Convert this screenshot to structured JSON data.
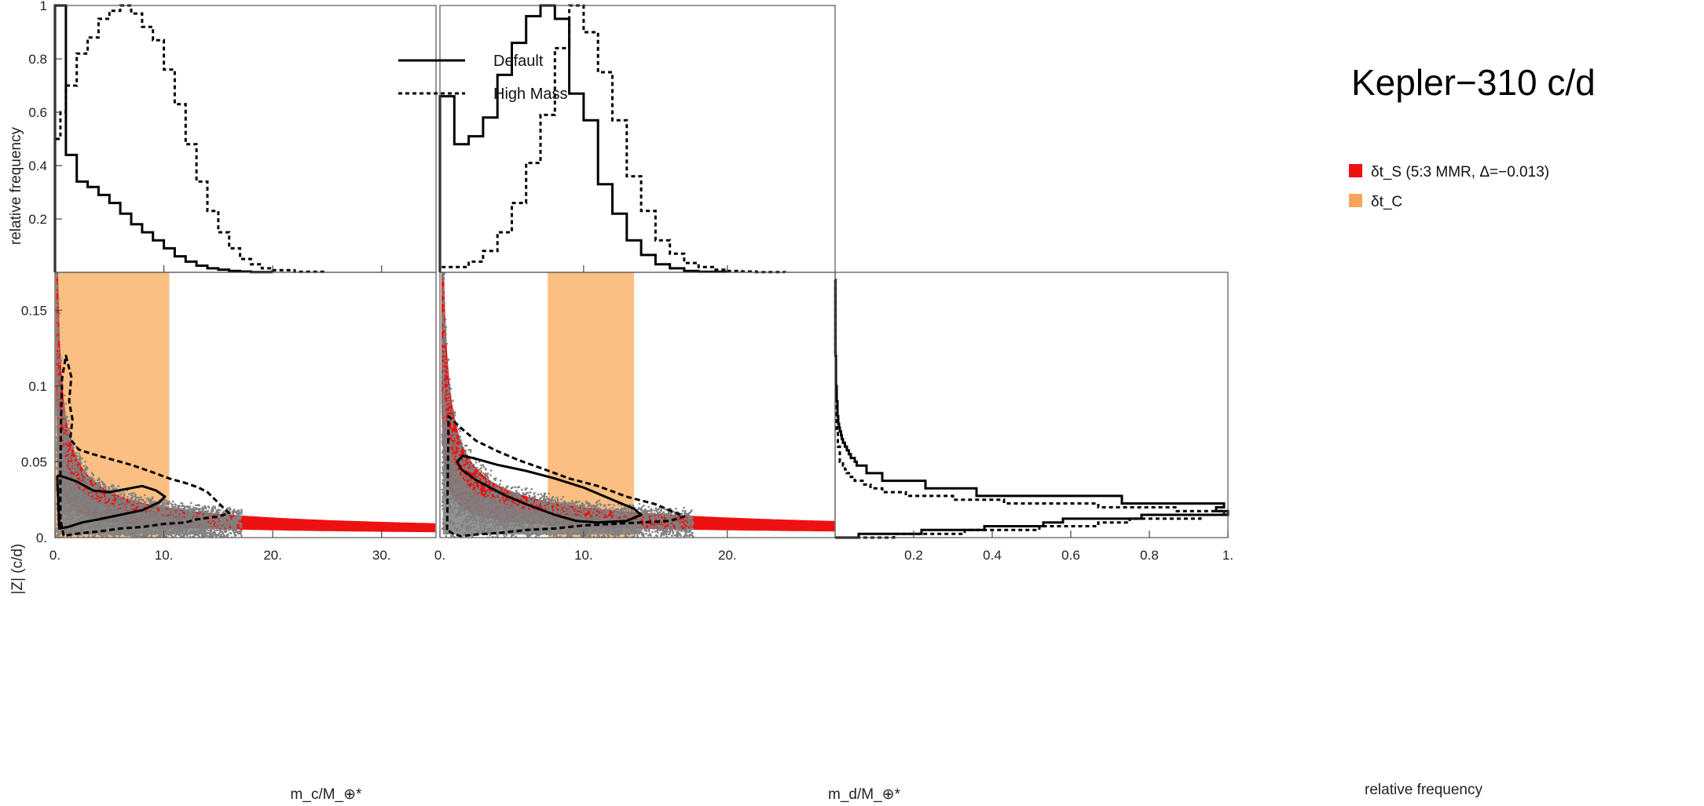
{
  "title": "Kepler−310 c/d",
  "legend_lines": {
    "solid": "Default",
    "dotted": "High Mass"
  },
  "legend_markers": [
    {
      "label": "δt_S (5:3 MMR, Δ=−0.013)",
      "color": "#ee1111"
    },
    {
      "label": "δt_C",
      "color": "#f7a35c"
    }
  ],
  "colors": {
    "resonant_region": "#ee1111",
    "chopping_region": "#fbbf82",
    "sample_points": "#808080"
  },
  "chart_data": [
    {
      "id": "hist_mc",
      "type": "line",
      "ylabel": "relative frequency",
      "xlim": [
        0,
        35
      ],
      "ylim": [
        0,
        1
      ],
      "yticks": [
        "0.2",
        "0.4",
        "0.6",
        "0.8",
        "1"
      ],
      "series": [
        {
          "name": "Default",
          "bin_edges": [
            0,
            1,
            2,
            3,
            4,
            5,
            6,
            7,
            8,
            9,
            10,
            11,
            12,
            13,
            14,
            15,
            16,
            17,
            18,
            20
          ],
          "values": [
            1.0,
            0.44,
            0.34,
            0.32,
            0.29,
            0.26,
            0.22,
            0.18,
            0.15,
            0.12,
            0.09,
            0.06,
            0.04,
            0.025,
            0.015,
            0.01,
            0.005,
            0.003,
            0.001
          ]
        },
        {
          "name": "High Mass",
          "bin_edges": [
            0,
            0.5,
            1,
            2,
            3,
            4,
            5,
            6,
            7,
            8,
            9,
            10,
            11,
            12,
            13,
            14,
            15,
            16,
            17,
            18,
            19,
            20,
            22,
            25
          ],
          "values": [
            0.5,
            0.6,
            0.7,
            0.82,
            0.88,
            0.95,
            0.98,
            1.0,
            0.97,
            0.92,
            0.87,
            0.76,
            0.63,
            0.48,
            0.34,
            0.23,
            0.15,
            0.09,
            0.05,
            0.03,
            0.015,
            0.008,
            0.002
          ]
        }
      ]
    },
    {
      "id": "hist_md",
      "type": "line",
      "xlim": [
        0,
        27.5
      ],
      "ylim": [
        0,
        1
      ],
      "series": [
        {
          "name": "Default",
          "bin_edges": [
            0,
            1,
            2,
            3,
            4,
            5,
            6,
            7,
            8,
            9,
            10,
            11,
            12,
            13,
            14,
            15,
            16,
            17,
            18,
            20
          ],
          "values": [
            0.66,
            0.48,
            0.51,
            0.58,
            0.74,
            0.86,
            0.96,
            1.0,
            0.95,
            0.67,
            0.57,
            0.33,
            0.22,
            0.12,
            0.065,
            0.03,
            0.015,
            0.005,
            0.002
          ]
        },
        {
          "name": "High Mass",
          "bin_edges": [
            0,
            2,
            3,
            4,
            5,
            6,
            7,
            8,
            9,
            10,
            11,
            12,
            13,
            14,
            15,
            16,
            17,
            18,
            19,
            20,
            21,
            22,
            24
          ],
          "values": [
            0.02,
            0.04,
            0.08,
            0.15,
            0.26,
            0.41,
            0.59,
            0.84,
            1.0,
            0.9,
            0.75,
            0.57,
            0.36,
            0.23,
            0.12,
            0.07,
            0.035,
            0.02,
            0.01,
            0.005,
            0.003,
            0.001
          ]
        }
      ]
    },
    {
      "id": "scatter_mc",
      "type": "scatter",
      "xlabel": "m_c/M_⊕*",
      "ylabel": "|Z| (c/d)",
      "xlim": [
        0,
        35
      ],
      "ylim": [
        0,
        0.175
      ],
      "xticks": [
        "0.",
        "10.",
        "20.",
        "30."
      ],
      "yticks": [
        "0.",
        "0.05",
        "0.1",
        "0.15"
      ],
      "chopping_band": [
        0,
        10.5
      ],
      "contours": [
        {
          "name": "Default",
          "x": [
            0.2,
            0.8,
            2,
            3.5,
            5,
            6.5,
            8,
            9.3,
            10.1,
            9.5,
            8,
            6,
            4,
            2.5,
            1.2,
            0.4,
            0.2
          ],
          "y": [
            0.041,
            0.04,
            0.037,
            0.031,
            0.03,
            0.032,
            0.034,
            0.031,
            0.027,
            0.023,
            0.018,
            0.015,
            0.012,
            0.01,
            0.007,
            0.006,
            0.041
          ]
        },
        {
          "name": "High Mass",
          "x": [
            0.5,
            0.5,
            0.55,
            0.65,
            1.0,
            1.5,
            1.3,
            1.6,
            1.4,
            2.2,
            3.5,
            5,
            7,
            9,
            10.5,
            12,
            13.2,
            14,
            16,
            15,
            13,
            12,
            10,
            8,
            6,
            4,
            2.5,
            1.5,
            0.8,
            0.5
          ],
          "y": [
            0.012,
            0.04,
            0.075,
            0.105,
            0.12,
            0.106,
            0.09,
            0.078,
            0.065,
            0.058,
            0.055,
            0.052,
            0.048,
            0.043,
            0.039,
            0.036,
            0.033,
            0.03,
            0.016,
            0.014,
            0.012,
            0.01,
            0.009,
            0.007,
            0.006,
            0.004,
            0.003,
            0.002,
            0.001,
            0.012
          ]
        }
      ]
    },
    {
      "id": "scatter_md",
      "type": "scatter",
      "xlabel": "m_d/M_⊕*",
      "xlim": [
        0,
        27.5
      ],
      "ylim": [
        0,
        0.175
      ],
      "xticks": [
        "0.",
        "10.",
        "20."
      ],
      "chopping_band": [
        7.5,
        13.5
      ],
      "contours": [
        {
          "name": "Default",
          "x": [
            1.5,
            1.2,
            1.6,
            2.5,
            4,
            6,
            8,
            10,
            12,
            13.5,
            14,
            13,
            11,
            9.5,
            8,
            6,
            4.5,
            3.5,
            2.5,
            1.5
          ],
          "y": [
            0.045,
            0.05,
            0.054,
            0.052,
            0.048,
            0.044,
            0.039,
            0.033,
            0.025,
            0.019,
            0.015,
            0.011,
            0.01,
            0.011,
            0.015,
            0.022,
            0.028,
            0.033,
            0.038,
            0.045
          ]
        },
        {
          "name": "High Mass",
          "x": [
            0.5,
            0.6,
            1.5,
            2.5,
            4,
            5.5,
            7,
            9,
            11,
            13,
            15,
            17,
            16,
            14,
            12,
            10,
            8,
            6,
            4,
            2.5,
            1.5,
            1.0,
            0.5
          ],
          "y": [
            0.005,
            0.08,
            0.072,
            0.064,
            0.057,
            0.051,
            0.046,
            0.039,
            0.034,
            0.027,
            0.022,
            0.014,
            0.011,
            0.01,
            0.009,
            0.008,
            0.006,
            0.005,
            0.003,
            0.002,
            0.001,
            0.002,
            0.005
          ]
        }
      ]
    },
    {
      "id": "hist_Z",
      "type": "line",
      "orientation": "horizontal",
      "xlabel": "relative frequency",
      "xlim": [
        0,
        1
      ],
      "ylim": [
        0,
        0.175
      ],
      "xticks": [
        "0.2",
        "0.4",
        "0.6",
        "0.8",
        "1."
      ],
      "series": [
        {
          "name": "Default",
          "bin_edges": [
            0,
            0.0025,
            0.005,
            0.0075,
            0.01,
            0.0125,
            0.015,
            0.0175,
            0.02,
            0.0225,
            0.025,
            0.0275,
            0.03,
            0.0325,
            0.035,
            0.0375,
            0.04,
            0.0425,
            0.045,
            0.0475,
            0.05,
            0.0525,
            0.055,
            0.0575,
            0.06,
            0.0625,
            0.065,
            0.0675,
            0.07,
            0.0725,
            0.075,
            0.08,
            0.09,
            0.1,
            0.12,
            0.17
          ],
          "values": [
            0.06,
            0.22,
            0.38,
            0.53,
            0.58,
            0.78,
            1.0,
            0.97,
            0.99,
            0.73,
            0.73,
            0.36,
            0.36,
            0.23,
            0.23,
            0.12,
            0.12,
            0.08,
            0.08,
            0.055,
            0.05,
            0.04,
            0.035,
            0.03,
            0.025,
            0.02,
            0.017,
            0.015,
            0.012,
            0.01,
            0.008,
            0.006,
            0.004,
            0.002,
            0.0005
          ]
        },
        {
          "name": "High Mass",
          "bin_edges": [
            0,
            0.0025,
            0.005,
            0.0075,
            0.01,
            0.0125,
            0.015,
            0.0175,
            0.02,
            0.0225,
            0.025,
            0.0275,
            0.03,
            0.0325,
            0.035,
            0.0375,
            0.04,
            0.0425,
            0.045,
            0.0475,
            0.05,
            0.06,
            0.07,
            0.09,
            0.12,
            0.17
          ],
          "values": [
            0.15,
            0.33,
            0.52,
            0.67,
            0.75,
            0.93,
            0.99,
            0.87,
            0.67,
            0.43,
            0.3,
            0.18,
            0.12,
            0.09,
            0.07,
            0.05,
            0.04,
            0.03,
            0.025,
            0.02,
            0.012,
            0.007,
            0.004,
            0.002,
            0.0005
          ]
        }
      ]
    }
  ]
}
